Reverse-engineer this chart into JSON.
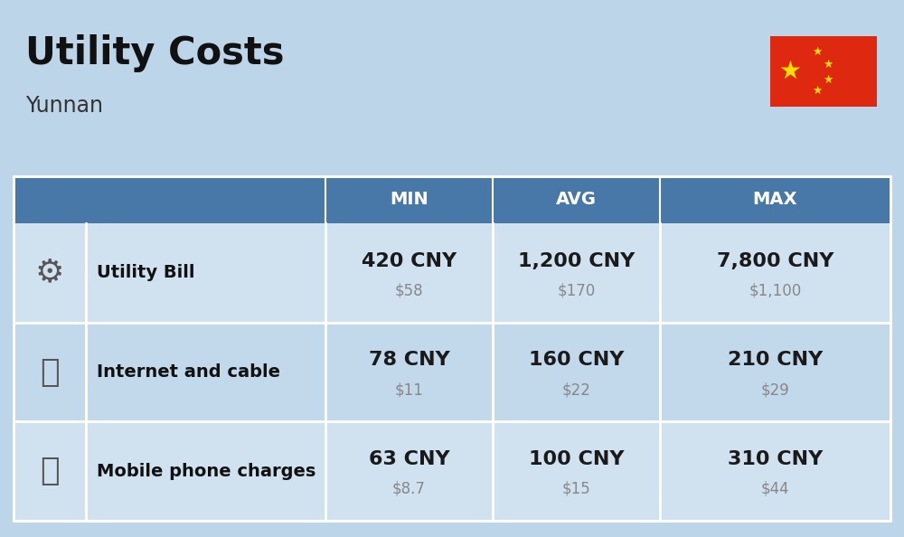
{
  "title": "Utility Costs",
  "subtitle": "Yunnan",
  "bg_color": "#bdd5e8",
  "header_bg": "#4878a8",
  "header_fg": "#ffffff",
  "row_light": "#d0e2f0",
  "row_dark": "#c2d8eb",
  "divider_color": "#ffffff",
  "flag_red": "#DE2910",
  "flag_yellow": "#FFDE00",
  "col_headers": [
    "MIN",
    "AVG",
    "MAX"
  ],
  "rows": [
    {
      "label": "Utility Bill",
      "min_cny": "420 CNY",
      "min_usd": "$58",
      "avg_cny": "1,200 CNY",
      "avg_usd": "$170",
      "max_cny": "7,800 CNY",
      "max_usd": "$1,100"
    },
    {
      "label": "Internet and cable",
      "min_cny": "78 CNY",
      "min_usd": "$11",
      "avg_cny": "160 CNY",
      "avg_usd": "$22",
      "max_cny": "210 CNY",
      "max_usd": "$29"
    },
    {
      "label": "Mobile phone charges",
      "min_cny": "63 CNY",
      "min_usd": "$8.7",
      "avg_cny": "100 CNY",
      "avg_usd": "$15",
      "max_cny": "310 CNY",
      "max_usd": "$44"
    }
  ],
  "title_fontsize": 30,
  "subtitle_fontsize": 17,
  "header_fontsize": 14,
  "label_fontsize": 14,
  "cny_fontsize": 16,
  "usd_fontsize": 12,
  "usd_color": "#888888",
  "label_color": "#111111",
  "cny_color": "#1a1a1a",
  "icons": [
    "🛠",
    "📶",
    "📱"
  ]
}
